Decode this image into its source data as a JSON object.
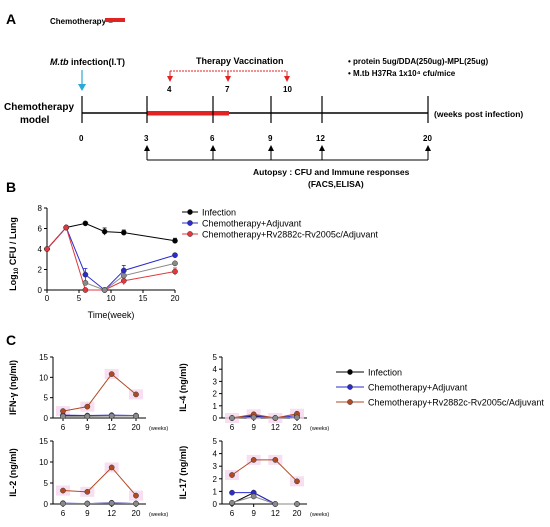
{
  "panel_labels": {
    "a": "A",
    "b": "B",
    "c": "C"
  },
  "schematic": {
    "chemo_legend_label": "Chemotherapy =",
    "infection_label_italic": "M.tb",
    "infection_label_rest": " infection(I.T)",
    "therapy_vaccination_label": "Therapy Vaccination",
    "vaccination_weeks": [
      "4",
      "7",
      "10"
    ],
    "model_label_line1": "Chemotherapy",
    "model_label_line2": "model",
    "timeline_weeks": [
      "0",
      "3",
      "6",
      "9",
      "12",
      "20"
    ],
    "timeline_unit_label": "(weeks post infection)",
    "protocol_notes": [
      "protein 5ug/DDA(250ug)-MPL(25ug)",
      "M.tb H37Ra 1x10⁴ cfu/mice"
    ],
    "autopsy_line1": "Autopsy : CFU and Immune responses",
    "autopsy_line2": "(FACS,ELISA)",
    "colors": {
      "chemo_bar": "#e32222",
      "vaccination": "#e32222",
      "infection_arrow": "#2aa8d8"
    }
  },
  "panel_b_legend": [
    "Infection",
    "Chemotherapy+Adjuvant",
    "Chemotherapy+Rv2882c-Rv2005c/Adjuvant"
  ],
  "panel_c_legend": [
    "Infection",
    "Chemotherapy+Adjuvant",
    "Chemotherapy+Rv2882c-Rv2005c/Adjuvant"
  ],
  "chart_data": [
    {
      "id": "B",
      "type": "line",
      "ylabel_base": "Log",
      "ylabel_sub": "10",
      "ylabel_rest": " CFU / Lung",
      "xlabel": "Time(week)",
      "xlim": [
        0,
        20
      ],
      "ylim": [
        0,
        8
      ],
      "xticks": [
        0,
        5,
        10,
        15,
        20
      ],
      "yticks": [
        0,
        2,
        4,
        6,
        8
      ],
      "series": [
        {
          "name": "Infection",
          "color": "#000000",
          "points": [
            [
              0,
              4.0
            ],
            [
              3,
              6.1
            ],
            [
              6,
              6.5
            ],
            [
              9,
              5.7
            ],
            [
              12,
              5.6
            ],
            [
              20,
              4.8
            ]
          ],
          "err": [
            0,
            0,
            0.15,
            0.35,
            0.25,
            0.25
          ]
        },
        {
          "name": "Chemotherapy+Adjuvant",
          "color": "#2b2bd0",
          "points": [
            [
              0,
              4.0
            ],
            [
              3,
              6.1
            ],
            [
              6,
              1.5
            ],
            [
              9,
              0.0
            ],
            [
              12,
              1.9
            ],
            [
              20,
              3.4
            ]
          ],
          "err": [
            0,
            0,
            0.6,
            0,
            0.5,
            0.15
          ]
        },
        {
          "name": "Chemotherapy+Rv2882c-Rv2005c/Adjuvant",
          "color": "#e0383c",
          "points": [
            [
              0,
              4.0
            ],
            [
              3,
              6.1
            ],
            [
              6,
              0.0
            ],
            [
              9,
              0.0
            ],
            [
              12,
              0.9
            ],
            [
              20,
              1.8
            ]
          ],
          "err": [
            0,
            0,
            0,
            0,
            0.4,
            0.35
          ]
        },
        {
          "name": "",
          "color": "#8a8a8a",
          "points": [
            [
              6,
              0.7
            ],
            [
              9,
              0.0
            ],
            [
              12,
              1.4
            ],
            [
              20,
              2.6
            ]
          ],
          "err": [
            0,
            0,
            0,
            0
          ]
        }
      ]
    },
    {
      "id": "IFN",
      "type": "line",
      "ylabel": "IFN-γ (ng/ml)",
      "categories": [
        "6",
        "9",
        "12",
        "20"
      ],
      "unit": "(weeks)",
      "ylim": [
        0,
        15
      ],
      "yticks": [
        0,
        5,
        10,
        15
      ],
      "series": [
        {
          "name": "Infection",
          "color": "#000000",
          "values": [
            0.5,
            0.5,
            0.5,
            0.5
          ]
        },
        {
          "name": "Chemotherapy+Adjuvant",
          "color": "#2b2bd0",
          "values": [
            0.7,
            0.6,
            0.7,
            0.6
          ]
        },
        {
          "name": "Chemotherapy+Rv2882c-Rv2005c/Adjuvant",
          "color": "#b04a22",
          "values": [
            1.7,
            2.8,
            10.8,
            5.8
          ]
        },
        {
          "name": "",
          "color": "#8a8a8a",
          "values": [
            0.4,
            0.4,
            0.5,
            0.5
          ]
        }
      ]
    },
    {
      "id": "IL4",
      "type": "line",
      "ylabel": "IL-4 (ng/ml)",
      "categories": [
        "6",
        "9",
        "12",
        "20"
      ],
      "unit": "(weeks)",
      "ylim": [
        0,
        5
      ],
      "yticks": [
        0,
        1,
        2,
        3,
        4,
        5
      ],
      "series": [
        {
          "name": "Infection",
          "color": "#000000",
          "values": [
            0.0,
            0.1,
            0.0,
            0.05
          ]
        },
        {
          "name": "Chemotherapy+Adjuvant",
          "color": "#2b2bd0",
          "values": [
            0.0,
            0.2,
            0.0,
            0.2
          ]
        },
        {
          "name": "Chemotherapy+Rv2882c-Rv2005c/Adjuvant",
          "color": "#b04a22",
          "values": [
            0.0,
            0.3,
            0.0,
            0.35
          ]
        },
        {
          "name": "",
          "color": "#8a8a8a",
          "values": [
            0.0,
            0.05,
            0.0,
            0.05
          ]
        }
      ]
    },
    {
      "id": "IL2",
      "type": "line",
      "ylabel": "IL-2 (ng/ml)",
      "categories": [
        "6",
        "9",
        "12",
        "20"
      ],
      "unit": "(weeks)",
      "ylim": [
        0,
        15
      ],
      "yticks": [
        0,
        5,
        10,
        15
      ],
      "series": [
        {
          "name": "Infection",
          "color": "#000000",
          "values": [
            0.1,
            0.1,
            0.1,
            0.1
          ]
        },
        {
          "name": "Chemotherapy+Adjuvant",
          "color": "#2b2bd0",
          "values": [
            0.2,
            0.1,
            0.3,
            0.1
          ]
        },
        {
          "name": "Chemotherapy+Rv2882c-Rv2005c/Adjuvant",
          "color": "#b04a22",
          "values": [
            3.2,
            2.9,
            8.7,
            2.0
          ]
        },
        {
          "name": "",
          "color": "#8a8a8a",
          "values": [
            0.1,
            0.1,
            0.2,
            0.1
          ]
        }
      ]
    },
    {
      "id": "IL17",
      "type": "line",
      "ylabel": "IL-17 (ng/ml)",
      "categories": [
        "6",
        "9",
        "12",
        "20"
      ],
      "unit": "(weeks)",
      "ylim": [
        0,
        5
      ],
      "yticks": [
        0,
        1,
        2,
        3,
        4,
        5
      ],
      "series": [
        {
          "name": "Infection",
          "color": "#000000",
          "values": [
            0.05,
            0.9,
            0.0,
            0.0
          ]
        },
        {
          "name": "Chemotherapy+Adjuvant",
          "color": "#2b2bd0",
          "values": [
            0.9,
            0.9,
            0.0,
            0.0
          ]
        },
        {
          "name": "Chemotherapy+Rv2882c-Rv2005c/Adjuvant",
          "color": "#b04a22",
          "values": [
            2.3,
            3.5,
            3.5,
            1.8
          ]
        },
        {
          "name": "",
          "color": "#8a8a8a",
          "values": [
            0.1,
            0.6,
            0.0,
            0.0
          ]
        }
      ]
    }
  ]
}
